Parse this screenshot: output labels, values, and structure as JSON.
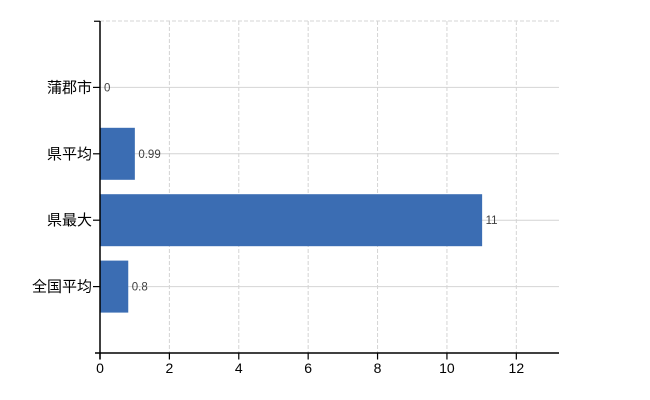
{
  "chart_data": {
    "type": "bar",
    "orientation": "horizontal",
    "title": "",
    "xlabel": "",
    "ylabel": "",
    "categories": [
      "蒲郡市",
      "県平均",
      "県最大",
      "全国平均"
    ],
    "values": [
      0,
      0.99,
      11,
      0.8
    ],
    "value_labels": [
      "0",
      "0.99",
      "11",
      "0.8"
    ],
    "x_ticks": [
      "0",
      "2",
      "4",
      "6",
      "8",
      "10",
      "12"
    ],
    "x_tick_values": [
      0,
      2,
      4,
      6,
      8,
      10,
      12
    ],
    "xlim": [
      0,
      13.23
    ],
    "grid": "on",
    "gridline_style_vertical": "dashed",
    "gridline_style_horizontal": "solid",
    "legend": "none",
    "colors": {
      "bar": "#3b6db3",
      "gridline": "#d4d4d4",
      "axis": "#000000",
      "category_label": "#000000",
      "tick_label": "#000000",
      "value_label": "#3f3f3f",
      "background": "#ffffff"
    }
  }
}
